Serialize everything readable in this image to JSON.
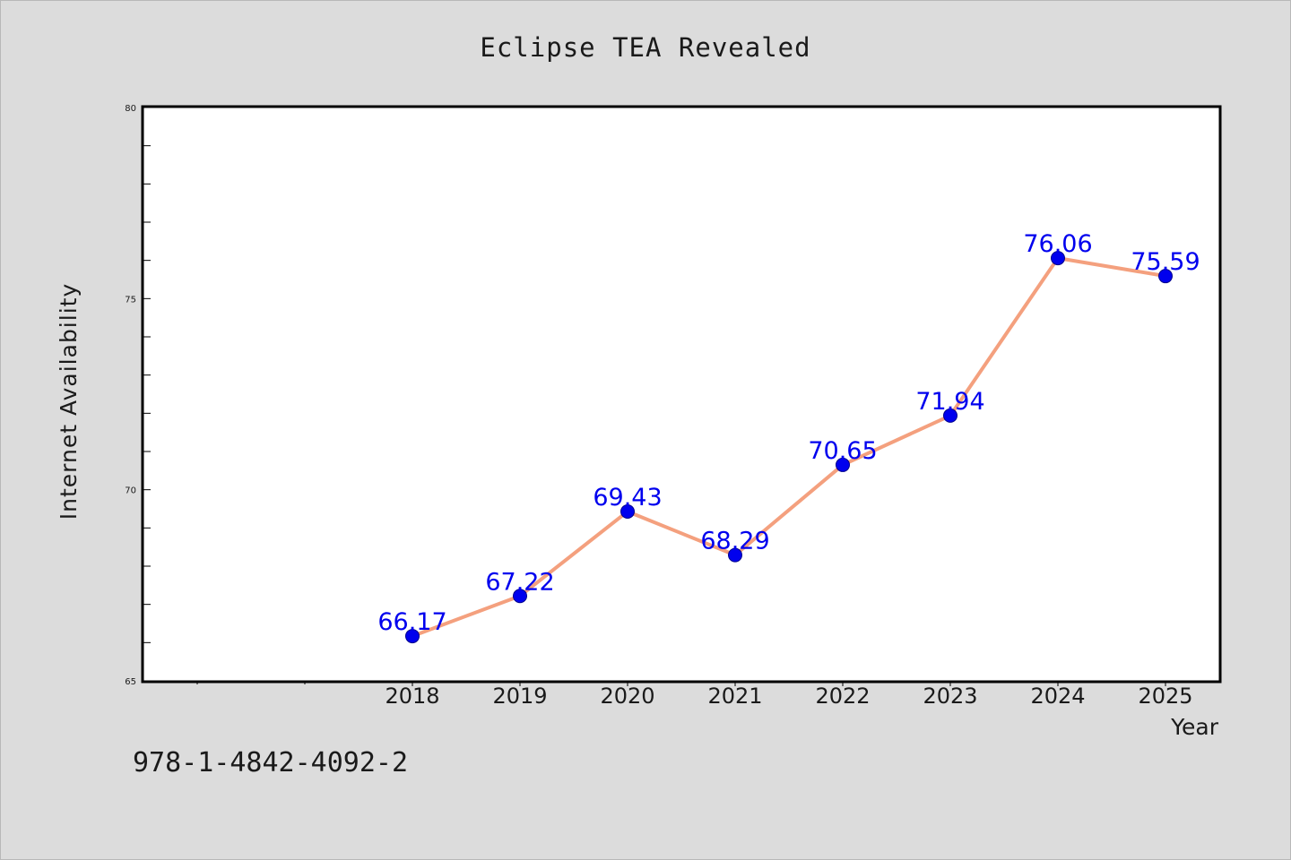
{
  "chart_data": {
    "type": "line",
    "title": "Eclipse TEA Revealed",
    "xlabel": "Year",
    "ylabel": "Internet Availability",
    "x": [
      "2018",
      "2019",
      "2020",
      "2021",
      "2022",
      "2023",
      "2024",
      "2025"
    ],
    "values": [
      66.17,
      67.22,
      69.43,
      68.29,
      70.65,
      71.94,
      76.06,
      75.59
    ],
    "data_labels": [
      "66.17",
      "67.22",
      "69.43",
      "68.29",
      "70.65",
      "71.94",
      "76.06",
      "75.59"
    ],
    "ylim": [
      65,
      80
    ],
    "yticks": [
      "65",
      "70",
      "75",
      "80"
    ],
    "grid": false,
    "line_color": "#f4a07e",
    "marker_color": "#0000ee",
    "label_color": "#0000ee"
  },
  "footer": {
    "isbn": "978-1-4842-4092-2"
  }
}
